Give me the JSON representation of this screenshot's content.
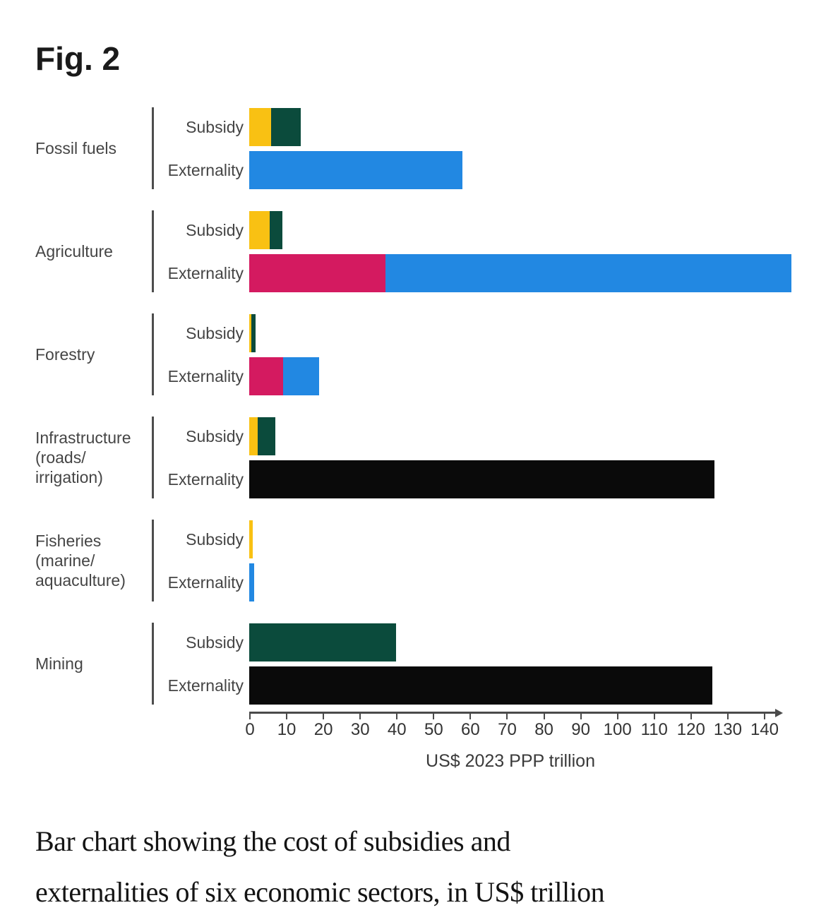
{
  "figure": {
    "label": "Fig. 2"
  },
  "caption": {
    "line1": "Bar chart showing the cost of subsidies and",
    "line2": "externalities of six economic sectors, in US$ trillion"
  },
  "chart_data": {
    "type": "bar",
    "orientation": "horizontal",
    "stacked": true,
    "title": "Fig. 2",
    "xlabel": "US$ 2023 PPP trillion",
    "xlim": [
      0,
      148
    ],
    "x_ticks": [
      0,
      10,
      20,
      30,
      40,
      50,
      60,
      70,
      80,
      90,
      100,
      110,
      120,
      130,
      140
    ],
    "grid": false,
    "legend": "none",
    "row_labels": [
      "Subsidy",
      "Externality"
    ],
    "colors": {
      "yellow": "#F9C113",
      "green": "#0B4B3C",
      "blue": "#2288E2",
      "pink": "#D41A60",
      "black": "#0A0A0A"
    },
    "sectors": [
      {
        "name": "Fossil fuels",
        "label_lines": [
          "Fossil fuels"
        ],
        "rows": [
          {
            "label": "Subsidy",
            "segments": [
              {
                "color": "yellow",
                "value": 6
              },
              {
                "color": "green",
                "value": 8
              }
            ],
            "total": 14
          },
          {
            "label": "Externality",
            "segments": [
              {
                "color": "blue",
                "value": 58
              }
            ],
            "total": 58
          }
        ]
      },
      {
        "name": "Agriculture",
        "label_lines": [
          "Agriculture"
        ],
        "rows": [
          {
            "label": "Subsidy",
            "segments": [
              {
                "color": "yellow",
                "value": 5.5
              },
              {
                "color": "green",
                "value": 3.5
              }
            ],
            "total": 9
          },
          {
            "label": "Externality",
            "segments": [
              {
                "color": "pink",
                "value": 37
              },
              {
                "color": "blue",
                "value": 110.5
              }
            ],
            "total": 147.5
          }
        ]
      },
      {
        "name": "Forestry",
        "label_lines": [
          "Forestry"
        ],
        "rows": [
          {
            "label": "Subsidy",
            "segments": [
              {
                "color": "yellow",
                "value": 0.5
              },
              {
                "color": "green",
                "value": 1.2
              }
            ],
            "total": 1.7
          },
          {
            "label": "Externality",
            "segments": [
              {
                "color": "pink",
                "value": 9.2
              },
              {
                "color": "blue",
                "value": 9.8
              }
            ],
            "total": 19
          }
        ]
      },
      {
        "name": "Infrastructure (roads/irrigation)",
        "label_lines": [
          "Infrastructure",
          "(roads/",
          "irrigation)"
        ],
        "rows": [
          {
            "label": "Subsidy",
            "segments": [
              {
                "color": "yellow",
                "value": 2.3
              },
              {
                "color": "green",
                "value": 4.9
              }
            ],
            "total": 7.2
          },
          {
            "label": "Externality",
            "segments": [
              {
                "color": "black",
                "value": 126.5
              }
            ],
            "total": 126.5
          }
        ]
      },
      {
        "name": "Fisheries (marine/aquaculture)",
        "label_lines": [
          "Fisheries",
          "(marine/",
          "aquaculture)"
        ],
        "rows": [
          {
            "label": "Subsidy",
            "segments": [
              {
                "color": "yellow",
                "value": 1
              }
            ],
            "total": 1
          },
          {
            "label": "Externality",
            "segments": [
              {
                "color": "blue",
                "value": 1.4
              }
            ],
            "total": 1.4
          }
        ]
      },
      {
        "name": "Mining",
        "label_lines": [
          "Mining"
        ],
        "rows": [
          {
            "label": "Subsidy",
            "segments": [
              {
                "color": "green",
                "value": 40
              }
            ],
            "total": 40
          },
          {
            "label": "Externality",
            "segments": [
              {
                "color": "black",
                "value": 126
              }
            ],
            "total": 126
          }
        ]
      }
    ]
  }
}
